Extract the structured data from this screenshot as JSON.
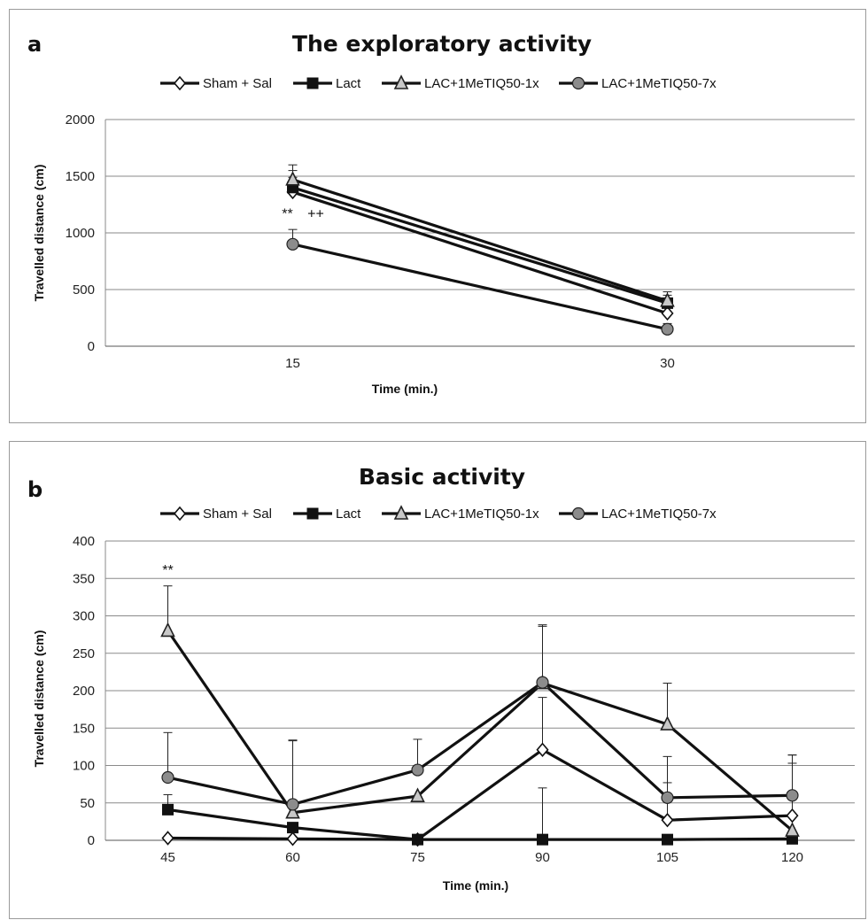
{
  "chart_data": [
    {
      "type": "line",
      "panel_label": "a",
      "title": "The exploratory activity",
      "xlabel": "Time (min.)",
      "ylabel": "Travelled distance (cm)",
      "x": [
        "15",
        "30"
      ],
      "ylim": [
        0,
        2000
      ],
      "yticks": [
        "0",
        "500",
        "1000",
        "1500",
        "2000"
      ],
      "grid": true,
      "legend_position": "top",
      "series": [
        {
          "name": "Sham + Sal",
          "marker": "diamond-open",
          "values": [
            1360,
            290
          ],
          "errors": [
            130,
            60
          ]
        },
        {
          "name": "Lact",
          "marker": "square-filled",
          "values": [
            1400,
            380
          ],
          "errors": [
            150,
            70
          ]
        },
        {
          "name": "LAC+1MeTIQ50-1x",
          "marker": "triangle-gray",
          "values": [
            1470,
            400
          ],
          "errors": [
            130,
            80
          ]
        },
        {
          "name": "LAC+1MeTIQ50-7x",
          "marker": "circle-gray",
          "values": [
            900,
            150
          ],
          "errors": [
            130,
            50
          ]
        }
      ],
      "annotations": [
        {
          "text": "**",
          "x": "15",
          "y": 1130
        },
        {
          "text": "++",
          "x": "15",
          "y": 1130
        }
      ]
    },
    {
      "type": "line",
      "panel_label": "b",
      "title": "Basic activity",
      "xlabel": "Time (min.)",
      "ylabel": "Travelled distance (cm)",
      "x": [
        "45",
        "60",
        "75",
        "90",
        "105",
        "120"
      ],
      "ylim": [
        0,
        400
      ],
      "yticks": [
        "0",
        "50",
        "100",
        "150",
        "200",
        "250",
        "300",
        "350",
        "400"
      ],
      "grid": true,
      "legend_position": "top",
      "series": [
        {
          "name": "Sham + Sal",
          "marker": "diamond-open",
          "values": [
            3,
            2,
            1,
            121,
            27,
            33
          ],
          "errors": [
            0,
            0,
            0,
            70,
            50,
            70
          ]
        },
        {
          "name": "Lact",
          "marker": "square-filled",
          "values": [
            41,
            17,
            1,
            1,
            1,
            2
          ],
          "errors": [
            20,
            0,
            0,
            69,
            0,
            0
          ]
        },
        {
          "name": "LAC+1MeTIQ50-1x",
          "marker": "triangle-gray",
          "values": [
            280,
            37,
            59,
            210,
            155,
            13
          ],
          "errors": [
            60,
            97,
            0,
            78,
            55,
            101
          ]
        },
        {
          "name": "LAC+1MeTIQ50-7x",
          "marker": "circle-gray",
          "values": [
            84,
            48,
            94,
            211,
            57,
            60
          ],
          "errors": [
            60,
            85,
            41,
            75,
            55,
            54
          ]
        }
      ],
      "annotations": [
        {
          "text": "**",
          "x": "45",
          "y": 355
        }
      ]
    }
  ]
}
